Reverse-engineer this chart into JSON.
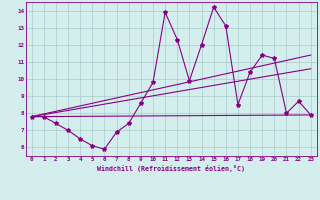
{
  "xlabel": "Windchill (Refroidissement éolien,°C)",
  "xlim": [
    -0.5,
    23.5
  ],
  "ylim": [
    5.5,
    14.5
  ],
  "xticks": [
    0,
    1,
    2,
    3,
    4,
    5,
    6,
    7,
    8,
    9,
    10,
    11,
    12,
    13,
    14,
    15,
    16,
    17,
    18,
    19,
    20,
    21,
    22,
    23
  ],
  "yticks": [
    6,
    7,
    8,
    9,
    10,
    11,
    12,
    13,
    14
  ],
  "bg_color": "#d4eeee",
  "line_color": "#880088",
  "grid_color": "#aacccc",
  "series1_x": [
    0,
    1,
    2,
    3,
    4,
    5,
    6,
    7,
    8,
    9,
    10,
    11,
    12,
    13,
    14,
    15,
    16,
    17,
    18,
    19,
    20,
    21,
    22,
    23
  ],
  "series1_y": [
    7.8,
    7.8,
    7.4,
    7.0,
    6.5,
    6.1,
    5.9,
    6.9,
    7.4,
    8.6,
    9.8,
    13.9,
    12.3,
    9.9,
    12.0,
    14.2,
    13.1,
    8.5,
    10.4,
    11.4,
    11.2,
    8.0,
    8.7,
    7.9
  ],
  "series2_x": [
    0,
    23
  ],
  "series2_y": [
    7.8,
    11.4
  ],
  "series3_x": [
    0,
    23
  ],
  "series3_y": [
    7.8,
    7.9
  ],
  "series4_x": [
    0,
    23
  ],
  "series4_y": [
    7.8,
    10.6
  ]
}
